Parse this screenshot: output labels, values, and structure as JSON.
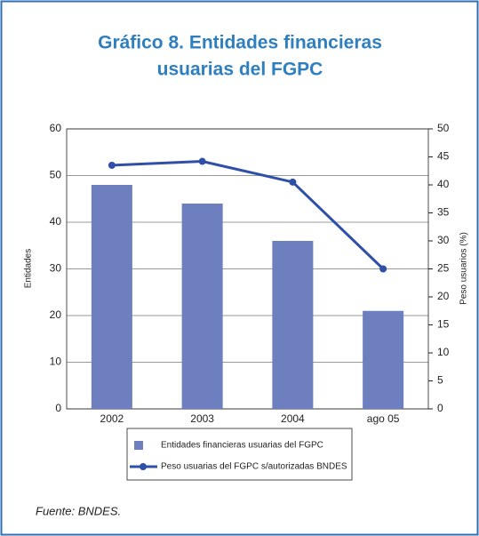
{
  "chart_data": {
    "type": "bar_line",
    "title": [
      "Gráfico 8. Entidades financieras",
      "usuarias del FGPC"
    ],
    "categories": [
      "2002",
      "2003",
      "2004",
      "ago 05"
    ],
    "series": [
      {
        "name": "Entidades financieras usuarias del FGPC",
        "color": "#6e7fbf",
        "values": [
          48,
          44,
          36,
          21
        ]
      },
      {
        "name": "Peso usuarias del FGPC s/autorizadas BNDES",
        "color": "#2f4fa8",
        "values": [
          43.5,
          44.2,
          40.5,
          25
        ],
        "axis": "y2"
      }
    ],
    "ylabel": "Entidades",
    "y2label": "Peso usuarios (%)",
    "ylim": [
      0,
      60
    ],
    "yticks": [
      0,
      10,
      20,
      30,
      40,
      50,
      60
    ],
    "y2lim": [
      0,
      50
    ],
    "y2ticks": [
      0,
      5,
      10,
      15,
      20,
      25,
      30,
      35,
      40,
      45,
      50
    ],
    "grid": true,
    "source": "Fuente: BNDES."
  }
}
